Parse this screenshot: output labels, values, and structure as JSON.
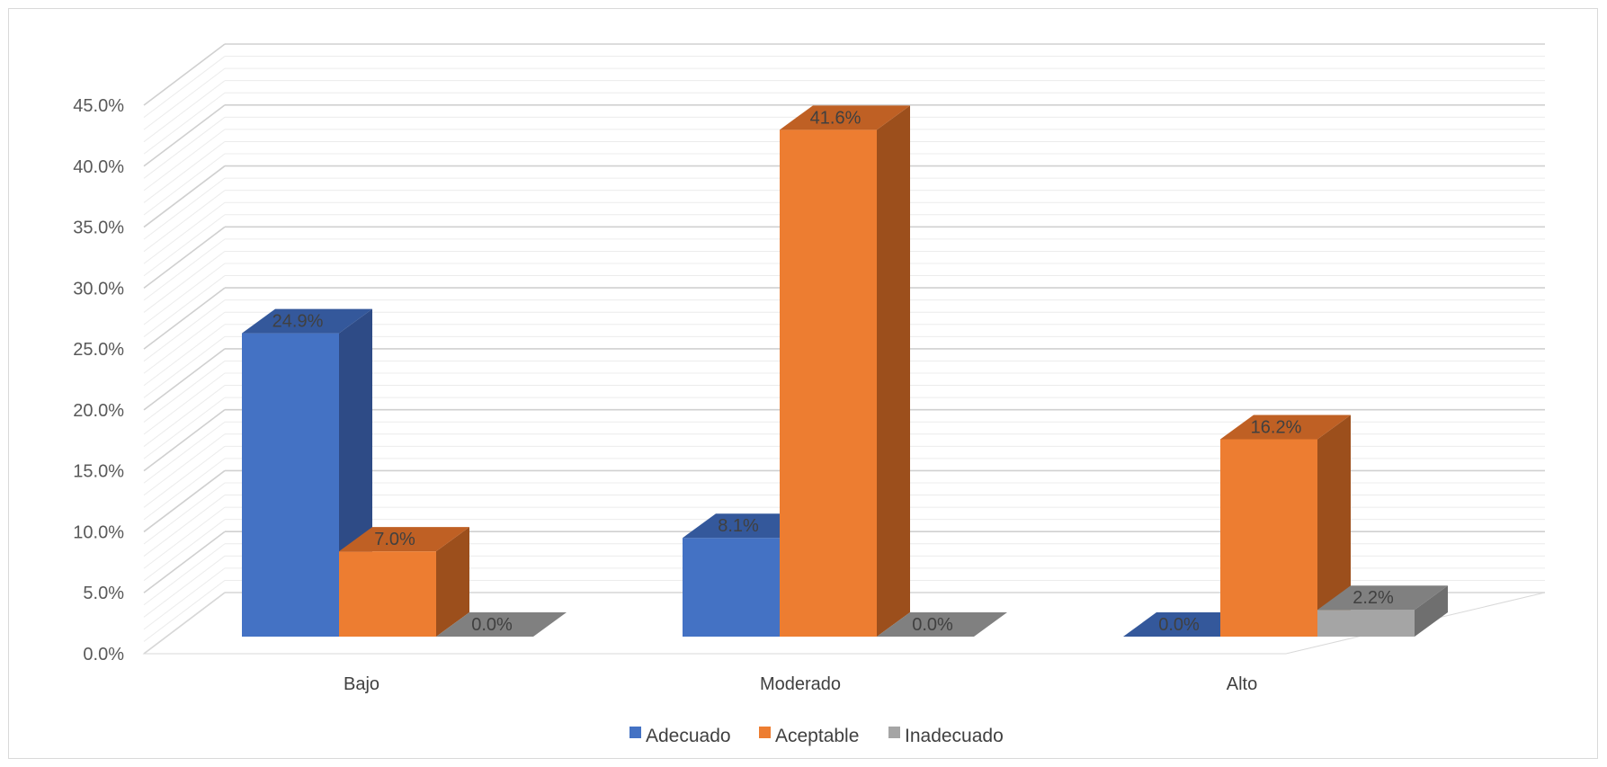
{
  "chart_data": {
    "type": "bar",
    "style": "3d-clustered-column",
    "categories": [
      "Bajo",
      "Moderado",
      "Alto"
    ],
    "series": [
      {
        "name": "Adecuado",
        "values": [
          24.9,
          8.1,
          0.0
        ],
        "color": "#4472C4",
        "side_color": "#2E4B86",
        "top_color": "#34589B"
      },
      {
        "name": "Aceptable",
        "values": [
          7.0,
          41.6,
          16.2
        ],
        "color": "#ED7D31",
        "side_color": "#9C4F1C",
        "top_color": "#BF6024"
      },
      {
        "name": "Inadecuado",
        "values": [
          0.0,
          0.0,
          2.2
        ],
        "color": "#A5A5A5",
        "side_color": "#6F6F6F",
        "top_color": "#808080"
      }
    ],
    "data_labels": [
      [
        "24.9%",
        "8.1%",
        "0.0%"
      ],
      [
        "7.0%",
        "41.6%",
        "16.2%"
      ],
      [
        "0.0%",
        "0.0%",
        "2.2%"
      ]
    ],
    "y_ticks": [
      "0.0%",
      "5.0%",
      "10.0%",
      "15.0%",
      "20.0%",
      "25.0%",
      "30.0%",
      "35.0%",
      "40.0%",
      "45.0%"
    ],
    "ylim": [
      0,
      45
    ],
    "title": "",
    "xlabel": "",
    "ylabel": "",
    "grid": true,
    "legend_position": "bottom-center"
  }
}
